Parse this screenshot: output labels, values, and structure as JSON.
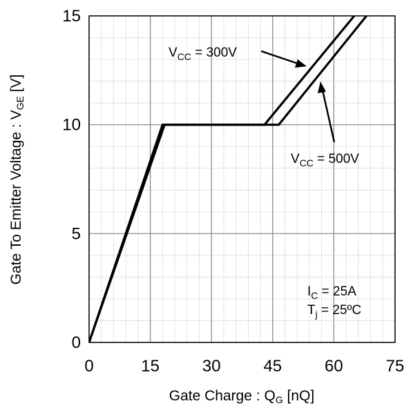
{
  "chart_data": {
    "type": "line",
    "xlabel": {
      "main": "Gate Charge : Q",
      "sub": "G",
      "unit": " [nQ]"
    },
    "ylabel": {
      "main": "Gate To Emitter  Voltage : V",
      "sub": "GE",
      "unit": " [V]"
    },
    "xlim": [
      0,
      75
    ],
    "ylim": [
      0,
      15
    ],
    "xticks": [
      "0",
      "15",
      "30",
      "45",
      "60",
      "75"
    ],
    "yticks": [
      "0",
      "5",
      "10",
      "15"
    ],
    "grid": true,
    "series": [
      {
        "name": "VCC = 300V",
        "x": [
          0,
          18,
          43,
          65
        ],
        "y": [
          0,
          10,
          10,
          15
        ]
      },
      {
        "name": "VCC = 500V",
        "x": [
          0,
          18.5,
          46.5,
          68
        ],
        "y": [
          0,
          10,
          10,
          15
        ]
      }
    ],
    "annotations": {
      "vcc300": {
        "main": "V",
        "sub": "CC",
        "rest": " = 300V"
      },
      "vcc500": {
        "main": "V",
        "sub": "CC",
        "rest": " = 500V"
      },
      "ic": {
        "main": "I",
        "sub": "C",
        "rest": " = 25A"
      },
      "tj": {
        "main": "T",
        "sub": "j",
        "rest": " = 25ºC"
      }
    },
    "colors": {
      "line": "#000000",
      "grid": "#808080",
      "minor_grid": "#b0b0b0"
    }
  }
}
